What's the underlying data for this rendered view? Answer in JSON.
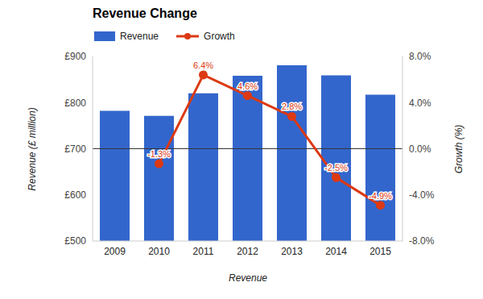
{
  "chart_data": {
    "type": "bar",
    "title": "Revenue Change",
    "x_label": "Revenue",
    "y_label": "Revenue (£ million)",
    "y2_label": "Growth (%)",
    "categories": [
      "2009",
      "2010",
      "2011",
      "2012",
      "2013",
      "2014",
      "2015"
    ],
    "series": [
      {
        "name": "Revenue",
        "type": "bar",
        "color": "#3366cc",
        "values": [
          782,
          771,
          820,
          858,
          881,
          859,
          817
        ]
      },
      {
        "name": "Growth",
        "type": "line",
        "color": "#dc3912",
        "axis": "y2",
        "marker": "circle",
        "data_labels": true,
        "values": [
          null,
          -1.3,
          6.4,
          4.6,
          2.8,
          -2.5,
          -4.9
        ],
        "value_labels": [
          null,
          "-1.3%",
          "6.4%",
          "4.6%",
          "2.8%",
          "-2.5%",
          "-4.9%"
        ]
      }
    ],
    "ylim": [
      500,
      900
    ],
    "yticks": [
      {
        "value": 500,
        "label": "£500"
      },
      {
        "value": 600,
        "label": "£600"
      },
      {
        "value": 700,
        "label": "£700"
      },
      {
        "value": 800,
        "label": "£800"
      },
      {
        "value": 900,
        "label": "£900"
      }
    ],
    "y2lim": [
      -8,
      8
    ],
    "y2ticks": [
      {
        "value": -8,
        "label": "-8.0%"
      },
      {
        "value": -4,
        "label": "-4.0%"
      },
      {
        "value": 0,
        "label": "0.0%"
      },
      {
        "value": 4,
        "label": "4.0%"
      },
      {
        "value": 8,
        "label": "8.0%"
      }
    ],
    "grid": false,
    "legend": "top-left"
  }
}
